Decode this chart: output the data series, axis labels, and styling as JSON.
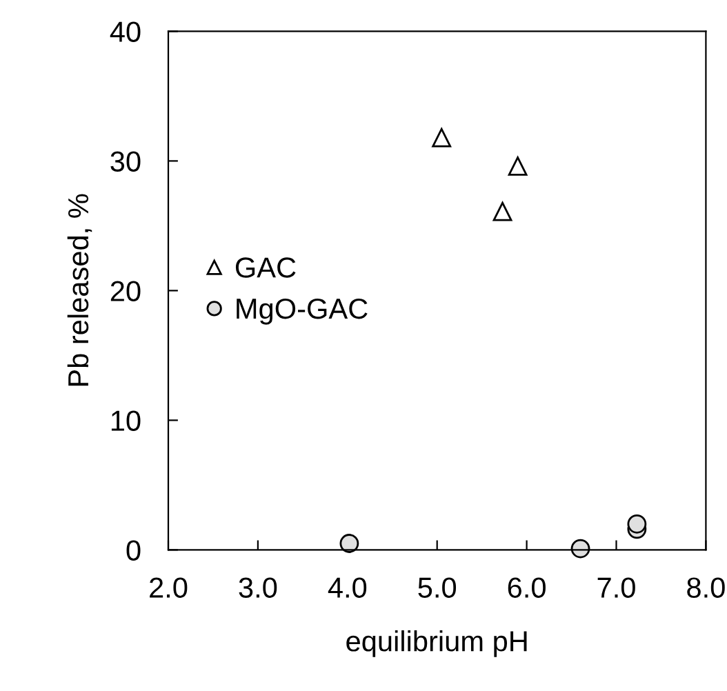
{
  "chart_data": {
    "type": "scatter",
    "xlabel": "equilibrium pH",
    "ylabel": "Pb released, %",
    "xlim": [
      2.0,
      8.0
    ],
    "ylim": [
      0,
      40
    ],
    "xticks": [
      {
        "value": 2,
        "label": "2.0"
      },
      {
        "value": 3,
        "label": "3.0"
      },
      {
        "value": 4,
        "label": "4.0"
      },
      {
        "value": 5,
        "label": "5.0"
      },
      {
        "value": 6,
        "label": "6.0"
      },
      {
        "value": 7,
        "label": "7.0"
      },
      {
        "value": 8,
        "label": "8.0"
      }
    ],
    "yticks": [
      0,
      10,
      20,
      30,
      40
    ],
    "grid": false,
    "legend": "left",
    "series": [
      {
        "name": "GAC",
        "color": "#ffffff",
        "marker": "triangle",
        "x": [
          5.05,
          5.9,
          5.73
        ],
        "values": [
          31.8,
          29.6,
          26.1
        ]
      },
      {
        "name": "MgO-GAC",
        "color": "#e0e0e0",
        "marker": "circle",
        "x": [
          4.02,
          6.6,
          7.23,
          7.23
        ],
        "values": [
          0.5,
          0.1,
          1.6,
          2.0
        ]
      }
    ]
  }
}
